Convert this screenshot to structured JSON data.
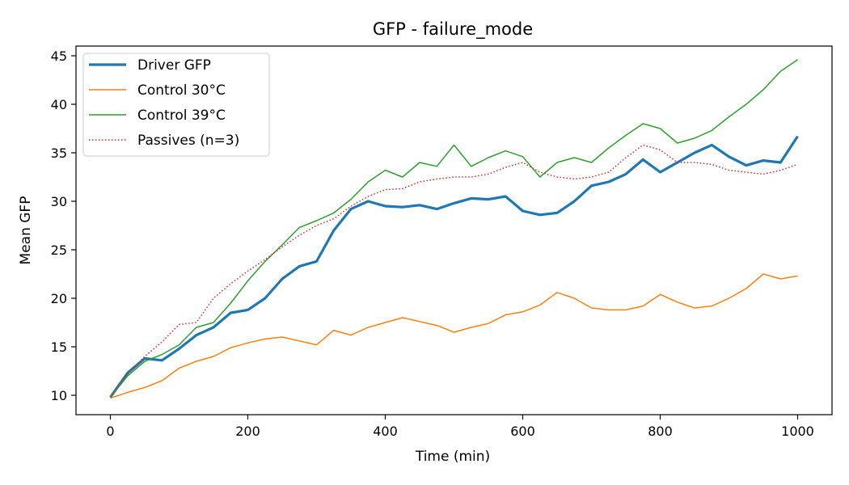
{
  "chart_data": {
    "type": "line",
    "title": "GFP - failure_mode",
    "xlabel": "Time (min)",
    "ylabel": "Mean GFP",
    "xlim": [
      -50,
      1050
    ],
    "ylim": [
      8,
      46
    ],
    "xticks": [
      0,
      200,
      400,
      600,
      800,
      1000
    ],
    "yticks": [
      10,
      15,
      20,
      25,
      30,
      35,
      40,
      45
    ],
    "grid": false,
    "legend_position": "top-left",
    "x": [
      0,
      25,
      50,
      75,
      100,
      125,
      150,
      175,
      200,
      225,
      250,
      275,
      300,
      325,
      350,
      375,
      400,
      425,
      450,
      475,
      500,
      525,
      550,
      575,
      600,
      625,
      650,
      675,
      700,
      725,
      750,
      775,
      800,
      825,
      850,
      875,
      900,
      925,
      950,
      975,
      1000
    ],
    "series": [
      {
        "name": "Driver GFP",
        "color": "#1f77b4",
        "style": "solid-thick",
        "values": [
          9.8,
          12.3,
          13.8,
          13.6,
          14.8,
          16.2,
          17.0,
          18.5,
          18.8,
          20.0,
          22.0,
          23.3,
          23.8,
          27.0,
          29.2,
          30.0,
          29.5,
          29.4,
          29.6,
          29.2,
          29.8,
          30.3,
          30.2,
          30.5,
          29.0,
          28.6,
          28.8,
          30.0,
          31.6,
          32.0,
          32.8,
          34.3,
          33.0,
          34.0,
          35.0,
          35.8,
          34.6,
          33.7,
          34.2,
          34.0,
          36.7
        ]
      },
      {
        "name": "Control 30°C",
        "color": "#ff7f0e",
        "style": "solid",
        "values": [
          9.7,
          10.3,
          10.8,
          11.5,
          12.8,
          13.5,
          14.0,
          14.9,
          15.4,
          15.8,
          16.0,
          15.6,
          15.2,
          16.7,
          16.2,
          17.0,
          17.5,
          18.0,
          17.6,
          17.2,
          16.5,
          17.0,
          17.4,
          18.3,
          18.6,
          19.3,
          20.6,
          20.0,
          19.0,
          18.8,
          18.8,
          19.2,
          20.4,
          19.6,
          19.0,
          19.2,
          20.0,
          21.0,
          22.5,
          22.0,
          22.3
        ]
      },
      {
        "name": "Control 39°C",
        "color": "#2ca02c",
        "style": "solid",
        "values": [
          9.8,
          12.0,
          13.5,
          14.2,
          15.2,
          17.0,
          17.5,
          19.5,
          21.8,
          23.8,
          25.5,
          27.3,
          28.0,
          28.8,
          30.2,
          32.0,
          33.2,
          32.5,
          34.0,
          33.6,
          35.8,
          33.6,
          34.5,
          35.2,
          34.6,
          32.5,
          34.0,
          34.5,
          34.0,
          35.5,
          36.8,
          38.0,
          37.5,
          36.0,
          36.5,
          37.3,
          38.7,
          40.0,
          41.5,
          43.4,
          44.6
        ]
      },
      {
        "name": "Passives (n=3)",
        "color": "#d62728",
        "style": "dotted",
        "values": [
          9.8,
          12.2,
          14.0,
          15.5,
          17.3,
          17.5,
          20.0,
          21.5,
          22.8,
          24.0,
          25.3,
          26.5,
          27.5,
          28.2,
          29.5,
          30.5,
          31.2,
          31.3,
          32.0,
          32.3,
          32.5,
          32.5,
          32.8,
          33.5,
          34.0,
          33.0,
          32.5,
          32.3,
          32.5,
          33.0,
          34.5,
          35.8,
          35.3,
          34.0,
          34.0,
          33.8,
          33.2,
          33.0,
          32.8,
          33.2,
          33.8
        ]
      }
    ]
  }
}
